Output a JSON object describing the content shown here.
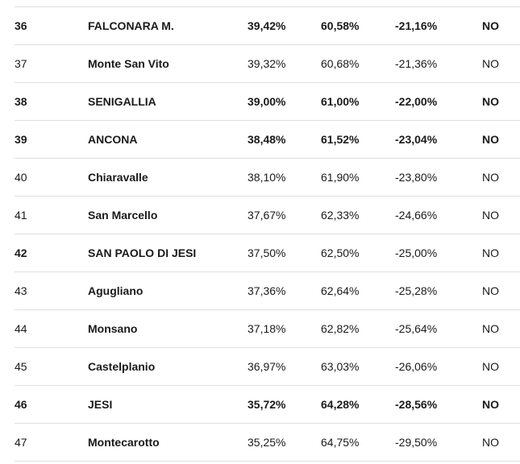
{
  "rows": [
    {
      "rank": "36",
      "name": "FALCONARA M.",
      "a": "39,42%",
      "b": "60,58%",
      "diff": "-21,16%",
      "res": "NO",
      "bold": true
    },
    {
      "rank": "37",
      "name": "Monte San Vito",
      "a": "39,32%",
      "b": "60,68%",
      "diff": "-21,36%",
      "res": "NO",
      "bold": false
    },
    {
      "rank": "38",
      "name": "SENIGALLIA",
      "a": "39,00%",
      "b": "61,00%",
      "diff": "-22,00%",
      "res": "NO",
      "bold": true
    },
    {
      "rank": "39",
      "name": "ANCONA",
      "a": "38,48%",
      "b": "61,52%",
      "diff": "-23,04%",
      "res": "NO",
      "bold": true
    },
    {
      "rank": "40",
      "name": "Chiaravalle",
      "a": "38,10%",
      "b": "61,90%",
      "diff": "-23,80%",
      "res": "NO",
      "bold": false
    },
    {
      "rank": "41",
      "name": "San Marcello",
      "a": "37,67%",
      "b": "62,33%",
      "diff": "-24,66%",
      "res": "NO",
      "bold": false
    },
    {
      "rank": "42",
      "name": "SAN PAOLO DI JESI",
      "a": "37,50%",
      "b": "62,50%",
      "diff": "-25,00%",
      "res": "NO",
      "bold": false,
      "rank_bold": true
    },
    {
      "rank": "43",
      "name": "Agugliano",
      "a": "37,36%",
      "b": "62,64%",
      "diff": "-25,28%",
      "res": "NO",
      "bold": false
    },
    {
      "rank": "44",
      "name": "Monsano",
      "a": "37,18%",
      "b": "62,82%",
      "diff": "-25,64%",
      "res": "NO",
      "bold": false
    },
    {
      "rank": "45",
      "name": "Castelplanio",
      "a": "36,97%",
      "b": "63,03%",
      "diff": "-26,06%",
      "res": "NO",
      "bold": false
    },
    {
      "rank": "46",
      "name": "JESI",
      "a": "35,72%",
      "b": "64,28%",
      "diff": "-28,56%",
      "res": "NO",
      "bold": true
    },
    {
      "rank": "47",
      "name": "Montecarotto",
      "a": "35,25%",
      "b": "64,75%",
      "diff": "-29,50%",
      "res": "NO",
      "bold": false
    }
  ]
}
